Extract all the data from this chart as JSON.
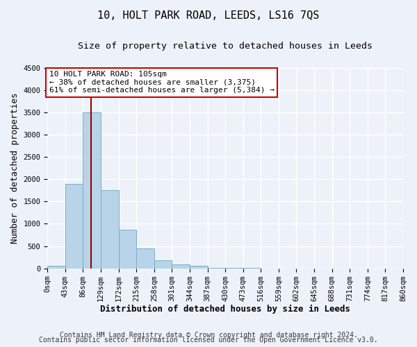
{
  "title": "10, HOLT PARK ROAD, LEEDS, LS16 7QS",
  "subtitle": "Size of property relative to detached houses in Leeds",
  "xlabel": "Distribution of detached houses by size in Leeds",
  "ylabel": "Number of detached properties",
  "bin_edges": [
    0,
    43,
    86,
    129,
    172,
    215,
    258,
    301,
    344,
    387,
    430,
    473,
    516,
    559,
    602,
    645,
    688,
    731,
    774,
    817,
    860
  ],
  "bar_heights": [
    50,
    1900,
    3500,
    1750,
    860,
    450,
    175,
    90,
    50,
    10,
    5,
    3,
    0,
    0,
    0,
    0,
    0,
    0,
    0,
    0
  ],
  "bar_color": "#b8d4e8",
  "bar_edge_color": "#7aaec8",
  "property_value": 105,
  "vline_color": "#990000",
  "annotation_line1": "10 HOLT PARK ROAD: 105sqm",
  "annotation_line2": "← 38% of detached houses are smaller (3,375)",
  "annotation_line3": "61% of semi-detached houses are larger (5,384) →",
  "annotation_box_color": "#ffffff",
  "annotation_box_edge": "#cc0000",
  "ylim": [
    0,
    4500
  ],
  "yticks": [
    0,
    500,
    1000,
    1500,
    2000,
    2500,
    3000,
    3500,
    4000,
    4500
  ],
  "xtick_labels": [
    "0sqm",
    "43sqm",
    "86sqm",
    "129sqm",
    "172sqm",
    "215sqm",
    "258sqm",
    "301sqm",
    "344sqm",
    "387sqm",
    "430sqm",
    "473sqm",
    "516sqm",
    "559sqm",
    "602sqm",
    "645sqm",
    "688sqm",
    "731sqm",
    "774sqm",
    "817sqm",
    "860sqm"
  ],
  "footer_line1": "Contains HM Land Registry data © Crown copyright and database right 2024.",
  "footer_line2": "Contains public sector information licensed under the Open Government Licence v3.0.",
  "bg_color": "#edf2f9",
  "plot_bg_color": "#edf2f9",
  "grid_color": "#ffffff",
  "title_fontsize": 11,
  "subtitle_fontsize": 9.5,
  "axis_label_fontsize": 9,
  "tick_fontsize": 7.5,
  "footer_fontsize": 7,
  "annotation_fontsize": 8
}
